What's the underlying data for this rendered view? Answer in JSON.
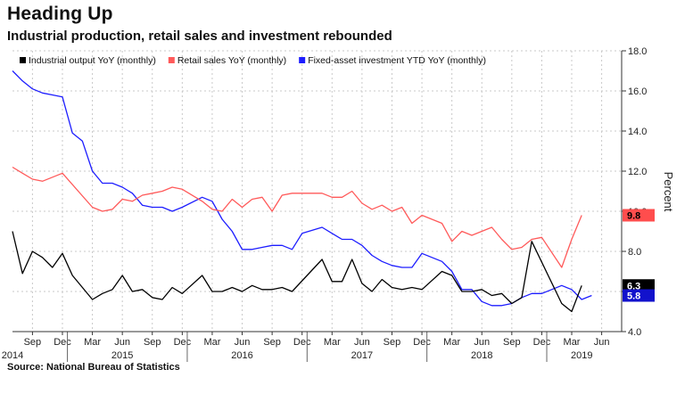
{
  "title": "Heading Up",
  "subtitle": "Industrial production, retail sales and investment rebounded",
  "source": "Source: National Bureau of Statistics",
  "chart_data": {
    "type": "line",
    "ylabel": "Percent",
    "ylim": [
      4.0,
      18.0
    ],
    "yticks": [
      "18.0",
      "16.0",
      "14.0",
      "12.0",
      "10.0",
      "8.0",
      "6.0",
      "4.0"
    ],
    "y_axis_side": "right",
    "grid": true,
    "legend_position": "top",
    "x_month_ticks": [
      {
        "label": "Sep",
        "x": "2014-09"
      },
      {
        "label": "Dec",
        "x": "2014-12"
      },
      {
        "label": "Mar",
        "x": "2015-03"
      },
      {
        "label": "Jun",
        "x": "2015-06"
      },
      {
        "label": "Sep",
        "x": "2015-09"
      },
      {
        "label": "Dec",
        "x": "2015-12"
      },
      {
        "label": "Mar",
        "x": "2016-03"
      },
      {
        "label": "Jun",
        "x": "2016-06"
      },
      {
        "label": "Sep",
        "x": "2016-09"
      },
      {
        "label": "Dec",
        "x": "2016-12"
      },
      {
        "label": "Mar",
        "x": "2017-03"
      },
      {
        "label": "Jun",
        "x": "2017-06"
      },
      {
        "label": "Sep",
        "x": "2017-09"
      },
      {
        "label": "Dec",
        "x": "2017-12"
      },
      {
        "label": "Mar",
        "x": "2018-03"
      },
      {
        "label": "Jun",
        "x": "2018-06"
      },
      {
        "label": "Sep",
        "x": "2018-09"
      },
      {
        "label": "Dec",
        "x": "2018-12"
      },
      {
        "label": "Mar",
        "x": "2019-03"
      },
      {
        "label": "Jun",
        "x": "2019-06"
      }
    ],
    "x_year_labels": [
      {
        "label": "2014",
        "x": "2014-07"
      },
      {
        "label": "2015",
        "x": "2015-06"
      },
      {
        "label": "2016",
        "x": "2016-06"
      },
      {
        "label": "2017",
        "x": "2017-06"
      },
      {
        "label": "2018",
        "x": "2018-06"
      },
      {
        "label": "2019",
        "x": "2019-04"
      }
    ],
    "year_separators": [
      "2014-12",
      "2015-12",
      "2016-12",
      "2017-12",
      "2018-12"
    ],
    "x_min": "2014-07",
    "x_max": "2019-08",
    "series": [
      {
        "name": "Industrial output YoY (monthly)",
        "color": "#000000",
        "last_value_label": "6.3",
        "points": [
          [
            "2014-07",
            9.0
          ],
          [
            "2014-08",
            6.9
          ],
          [
            "2014-09",
            8.0
          ],
          [
            "2014-10",
            7.7
          ],
          [
            "2014-11",
            7.2
          ],
          [
            "2014-12",
            7.9
          ],
          [
            "2015-01",
            6.8
          ],
          [
            "2015-03",
            5.6
          ],
          [
            "2015-04",
            5.9
          ],
          [
            "2015-05",
            6.1
          ],
          [
            "2015-06",
            6.8
          ],
          [
            "2015-07",
            6.0
          ],
          [
            "2015-08",
            6.1
          ],
          [
            "2015-09",
            5.7
          ],
          [
            "2015-10",
            5.6
          ],
          [
            "2015-11",
            6.2
          ],
          [
            "2015-12",
            5.9
          ],
          [
            "2016-02",
            6.8
          ],
          [
            "2016-03",
            6.0
          ],
          [
            "2016-04",
            6.0
          ],
          [
            "2016-05",
            6.2
          ],
          [
            "2016-06",
            6.0
          ],
          [
            "2016-07",
            6.3
          ],
          [
            "2016-08",
            6.1
          ],
          [
            "2016-09",
            6.1
          ],
          [
            "2016-10",
            6.2
          ],
          [
            "2016-11",
            6.0
          ],
          [
            "2017-02",
            7.6
          ],
          [
            "2017-03",
            6.5
          ],
          [
            "2017-04",
            6.5
          ],
          [
            "2017-05",
            7.6
          ],
          [
            "2017-06",
            6.4
          ],
          [
            "2017-07",
            6.0
          ],
          [
            "2017-08",
            6.6
          ],
          [
            "2017-09",
            6.2
          ],
          [
            "2017-10",
            6.1
          ],
          [
            "2017-11",
            6.2
          ],
          [
            "2017-12",
            6.1
          ],
          [
            "2018-02",
            7.0
          ],
          [
            "2018-03",
            6.8
          ],
          [
            "2018-04",
            6.0
          ],
          [
            "2018-05",
            6.0
          ],
          [
            "2018-06",
            6.1
          ],
          [
            "2018-07",
            5.8
          ],
          [
            "2018-08",
            5.9
          ],
          [
            "2018-09",
            5.4
          ],
          [
            "2018-10",
            5.7
          ],
          [
            "2018-11",
            8.5
          ],
          [
            "2019-02",
            5.4
          ],
          [
            "2019-03",
            5.0
          ],
          [
            "2019-04",
            6.3
          ]
        ]
      },
      {
        "name": "Retail sales YoY (monthly)",
        "color": "#ff5a5a",
        "last_value_label": "9.8",
        "points": [
          [
            "2014-07",
            12.2
          ],
          [
            "2014-08",
            11.9
          ],
          [
            "2014-09",
            11.6
          ],
          [
            "2014-10",
            11.5
          ],
          [
            "2014-11",
            11.7
          ],
          [
            "2014-12",
            11.9
          ],
          [
            "2015-03",
            10.2
          ],
          [
            "2015-04",
            10.0
          ],
          [
            "2015-05",
            10.1
          ],
          [
            "2015-06",
            10.6
          ],
          [
            "2015-07",
            10.5
          ],
          [
            "2015-08",
            10.8
          ],
          [
            "2015-09",
            10.9
          ],
          [
            "2015-10",
            11.0
          ],
          [
            "2015-11",
            11.2
          ],
          [
            "2015-12",
            11.1
          ],
          [
            "2016-02",
            10.5
          ],
          [
            "2016-03",
            10.1
          ],
          [
            "2016-04",
            10.0
          ],
          [
            "2016-05",
            10.6
          ],
          [
            "2016-06",
            10.2
          ],
          [
            "2016-07",
            10.6
          ],
          [
            "2016-08",
            10.7
          ],
          [
            "2016-09",
            10.0
          ],
          [
            "2016-10",
            10.8
          ],
          [
            "2016-11",
            10.9
          ],
          [
            "2016-12",
            10.9
          ],
          [
            "2017-02",
            10.9
          ],
          [
            "2017-03",
            10.7
          ],
          [
            "2017-04",
            10.7
          ],
          [
            "2017-05",
            11.0
          ],
          [
            "2017-06",
            10.4
          ],
          [
            "2017-07",
            10.1
          ],
          [
            "2017-08",
            10.3
          ],
          [
            "2017-09",
            10.0
          ],
          [
            "2017-10",
            10.2
          ],
          [
            "2017-11",
            9.4
          ],
          [
            "2017-12",
            9.8
          ],
          [
            "2018-02",
            9.4
          ],
          [
            "2018-03",
            8.5
          ],
          [
            "2018-04",
            9.0
          ],
          [
            "2018-05",
            8.8
          ],
          [
            "2018-06",
            9.0
          ],
          [
            "2018-07",
            9.2
          ],
          [
            "2018-08",
            8.6
          ],
          [
            "2018-09",
            8.1
          ],
          [
            "2018-10",
            8.2
          ],
          [
            "2018-11",
            8.6
          ],
          [
            "2018-12",
            8.7
          ],
          [
            "2019-02",
            7.2
          ],
          [
            "2019-03",
            8.6
          ],
          [
            "2019-04",
            9.8
          ]
        ]
      },
      {
        "name": "Fixed-asset investment YTD YoY (monthly)",
        "color": "#1d1dff",
        "last_value_label": "5.8",
        "points": [
          [
            "2014-07",
            17.0
          ],
          [
            "2014-08",
            16.5
          ],
          [
            "2014-09",
            16.1
          ],
          [
            "2014-10",
            15.9
          ],
          [
            "2014-11",
            15.8
          ],
          [
            "2014-12",
            15.7
          ],
          [
            "2015-01",
            13.9
          ],
          [
            "2015-02",
            13.5
          ],
          [
            "2015-03",
            12.0
          ],
          [
            "2015-04",
            11.4
          ],
          [
            "2015-05",
            11.4
          ],
          [
            "2015-06",
            11.2
          ],
          [
            "2015-07",
            10.9
          ],
          [
            "2015-08",
            10.3
          ],
          [
            "2015-09",
            10.2
          ],
          [
            "2015-10",
            10.2
          ],
          [
            "2015-11",
            10.0
          ],
          [
            "2015-12",
            10.2
          ],
          [
            "2016-02",
            10.7
          ],
          [
            "2016-03",
            10.5
          ],
          [
            "2016-04",
            9.6
          ],
          [
            "2016-05",
            9.0
          ],
          [
            "2016-06",
            8.1
          ],
          [
            "2016-07",
            8.1
          ],
          [
            "2016-08",
            8.2
          ],
          [
            "2016-09",
            8.3
          ],
          [
            "2016-10",
            8.3
          ],
          [
            "2016-11",
            8.1
          ],
          [
            "2016-12",
            8.9
          ],
          [
            "2017-02",
            9.2
          ],
          [
            "2017-03",
            8.9
          ],
          [
            "2017-04",
            8.6
          ],
          [
            "2017-05",
            8.6
          ],
          [
            "2017-06",
            8.3
          ],
          [
            "2017-07",
            7.8
          ],
          [
            "2017-08",
            7.5
          ],
          [
            "2017-09",
            7.3
          ],
          [
            "2017-10",
            7.2
          ],
          [
            "2017-11",
            7.2
          ],
          [
            "2017-12",
            7.9
          ],
          [
            "2018-02",
            7.5
          ],
          [
            "2018-03",
            7.0
          ],
          [
            "2018-04",
            6.1
          ],
          [
            "2018-05",
            6.1
          ],
          [
            "2018-06",
            5.5
          ],
          [
            "2018-07",
            5.3
          ],
          [
            "2018-08",
            5.3
          ],
          [
            "2018-09",
            5.4
          ],
          [
            "2018-10",
            5.7
          ],
          [
            "2018-11",
            5.9
          ],
          [
            "2018-12",
            5.9
          ],
          [
            "2019-02",
            6.3
          ],
          [
            "2019-03",
            6.1
          ],
          [
            "2019-04",
            5.6
          ],
          [
            "2019-05",
            5.8
          ]
        ]
      }
    ]
  }
}
